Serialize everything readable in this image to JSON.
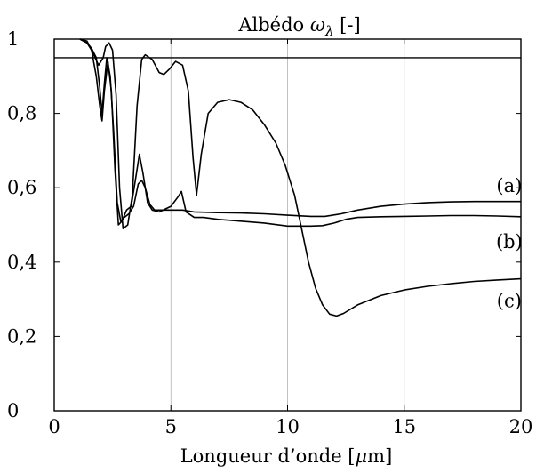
{
  "chart_data": {
    "type": "line",
    "title_text": "Albédo ",
    "title_symbol": "ω",
    "title_subscript": "λ",
    "title_unit": " [-]",
    "xlabel_text": "Longueur d’onde [",
    "xlabel_mu": "μ",
    "xlabel_unit": "m]",
    "ylabel": "",
    "xlim": [
      0,
      20
    ],
    "ylim": [
      0,
      1
    ],
    "xticks": [
      0,
      5,
      10,
      15,
      20
    ],
    "xtick_labels": [
      "0",
      "5",
      "10",
      "15",
      "20"
    ],
    "yticks": [
      0,
      0.2,
      0.4,
      0.6,
      0.8,
      1
    ],
    "ytick_labels": [
      "0",
      "0,2",
      "0,4",
      "0,6",
      "0,8",
      "1"
    ],
    "grid_x": true,
    "grid_y": false,
    "reference_line": 0.95,
    "series": [
      {
        "name": "(a)",
        "label_at": [
          19.5,
          0.605
        ],
        "points": [
          [
            1.1,
            1.0
          ],
          [
            1.4,
            0.99
          ],
          [
            1.6,
            0.975
          ],
          [
            1.8,
            0.95
          ],
          [
            1.95,
            0.87
          ],
          [
            2.05,
            0.8
          ],
          [
            2.15,
            0.88
          ],
          [
            2.25,
            0.95
          ],
          [
            2.4,
            0.9
          ],
          [
            2.55,
            0.75
          ],
          [
            2.7,
            0.56
          ],
          [
            2.85,
            0.51
          ],
          [
            3.0,
            0.52
          ],
          [
            3.2,
            0.53
          ],
          [
            3.4,
            0.55
          ],
          [
            3.6,
            0.61
          ],
          [
            3.75,
            0.62
          ],
          [
            3.9,
            0.6
          ],
          [
            4.1,
            0.555
          ],
          [
            4.3,
            0.54
          ],
          [
            5.0,
            0.54
          ],
          [
            5.5,
            0.54
          ],
          [
            6.0,
            0.535
          ],
          [
            7.0,
            0.533
          ],
          [
            8.0,
            0.532
          ],
          [
            9.0,
            0.53
          ],
          [
            10.0,
            0.526
          ],
          [
            11.0,
            0.523
          ],
          [
            11.6,
            0.523
          ],
          [
            12.3,
            0.53
          ],
          [
            13.0,
            0.54
          ],
          [
            14.0,
            0.55
          ],
          [
            15.0,
            0.556
          ],
          [
            16.0,
            0.56
          ],
          [
            17.0,
            0.562
          ],
          [
            18.0,
            0.563
          ],
          [
            19.0,
            0.563
          ],
          [
            20.0,
            0.563
          ]
        ]
      },
      {
        "name": "(b)",
        "label_at": [
          19.5,
          0.455
        ],
        "points": [
          [
            1.1,
            1.0
          ],
          [
            1.4,
            0.99
          ],
          [
            1.6,
            0.97
          ],
          [
            1.8,
            0.9
          ],
          [
            1.95,
            0.82
          ],
          [
            2.05,
            0.78
          ],
          [
            2.15,
            0.86
          ],
          [
            2.3,
            0.94
          ],
          [
            2.45,
            0.86
          ],
          [
            2.6,
            0.65
          ],
          [
            2.75,
            0.5
          ],
          [
            2.9,
            0.51
          ],
          [
            3.1,
            0.54
          ],
          [
            3.3,
            0.55
          ],
          [
            3.5,
            0.63
          ],
          [
            3.65,
            0.69
          ],
          [
            3.8,
            0.64
          ],
          [
            4.0,
            0.56
          ],
          [
            4.2,
            0.54
          ],
          [
            4.5,
            0.535
          ],
          [
            5.0,
            0.55
          ],
          [
            5.3,
            0.575
          ],
          [
            5.45,
            0.59
          ],
          [
            5.65,
            0.535
          ],
          [
            6.0,
            0.52
          ],
          [
            6.4,
            0.52
          ],
          [
            7.0,
            0.515
          ],
          [
            8.0,
            0.51
          ],
          [
            9.0,
            0.505
          ],
          [
            10.0,
            0.497
          ],
          [
            11.0,
            0.497
          ],
          [
            11.5,
            0.498
          ],
          [
            12.0,
            0.505
          ],
          [
            12.5,
            0.515
          ],
          [
            13.0,
            0.52
          ],
          [
            14.0,
            0.522
          ],
          [
            15.0,
            0.523
          ],
          [
            16.0,
            0.524
          ],
          [
            17.0,
            0.525
          ],
          [
            18.0,
            0.525
          ],
          [
            19.0,
            0.524
          ],
          [
            20.0,
            0.522
          ]
        ]
      },
      {
        "name": "(c)",
        "label_at": [
          19.5,
          0.295
        ],
        "points": [
          [
            1.1,
            1.0
          ],
          [
            1.4,
            0.995
          ],
          [
            1.6,
            0.97
          ],
          [
            1.9,
            0.93
          ],
          [
            2.1,
            0.95
          ],
          [
            2.2,
            0.98
          ],
          [
            2.35,
            0.99
          ],
          [
            2.5,
            0.97
          ],
          [
            2.65,
            0.85
          ],
          [
            2.8,
            0.6
          ],
          [
            2.95,
            0.49
          ],
          [
            3.15,
            0.5
          ],
          [
            3.35,
            0.58
          ],
          [
            3.55,
            0.82
          ],
          [
            3.75,
            0.945
          ],
          [
            3.9,
            0.958
          ],
          [
            4.2,
            0.945
          ],
          [
            4.5,
            0.91
          ],
          [
            4.7,
            0.905
          ],
          [
            4.95,
            0.92
          ],
          [
            5.2,
            0.94
          ],
          [
            5.5,
            0.93
          ],
          [
            5.75,
            0.86
          ],
          [
            5.95,
            0.68
          ],
          [
            6.1,
            0.58
          ],
          [
            6.3,
            0.69
          ],
          [
            6.6,
            0.8
          ],
          [
            7.0,
            0.83
          ],
          [
            7.5,
            0.837
          ],
          [
            8.0,
            0.83
          ],
          [
            8.5,
            0.81
          ],
          [
            9.0,
            0.77
          ],
          [
            9.5,
            0.72
          ],
          [
            9.9,
            0.66
          ],
          [
            10.3,
            0.58
          ],
          [
            10.6,
            0.49
          ],
          [
            10.9,
            0.4
          ],
          [
            11.2,
            0.33
          ],
          [
            11.5,
            0.285
          ],
          [
            11.8,
            0.26
          ],
          [
            12.1,
            0.255
          ],
          [
            12.4,
            0.262
          ],
          [
            13.0,
            0.285
          ],
          [
            14.0,
            0.31
          ],
          [
            15.0,
            0.325
          ],
          [
            16.0,
            0.335
          ],
          [
            17.0,
            0.342
          ],
          [
            18.0,
            0.348
          ],
          [
            19.0,
            0.352
          ],
          [
            20.0,
            0.355
          ]
        ]
      }
    ]
  }
}
